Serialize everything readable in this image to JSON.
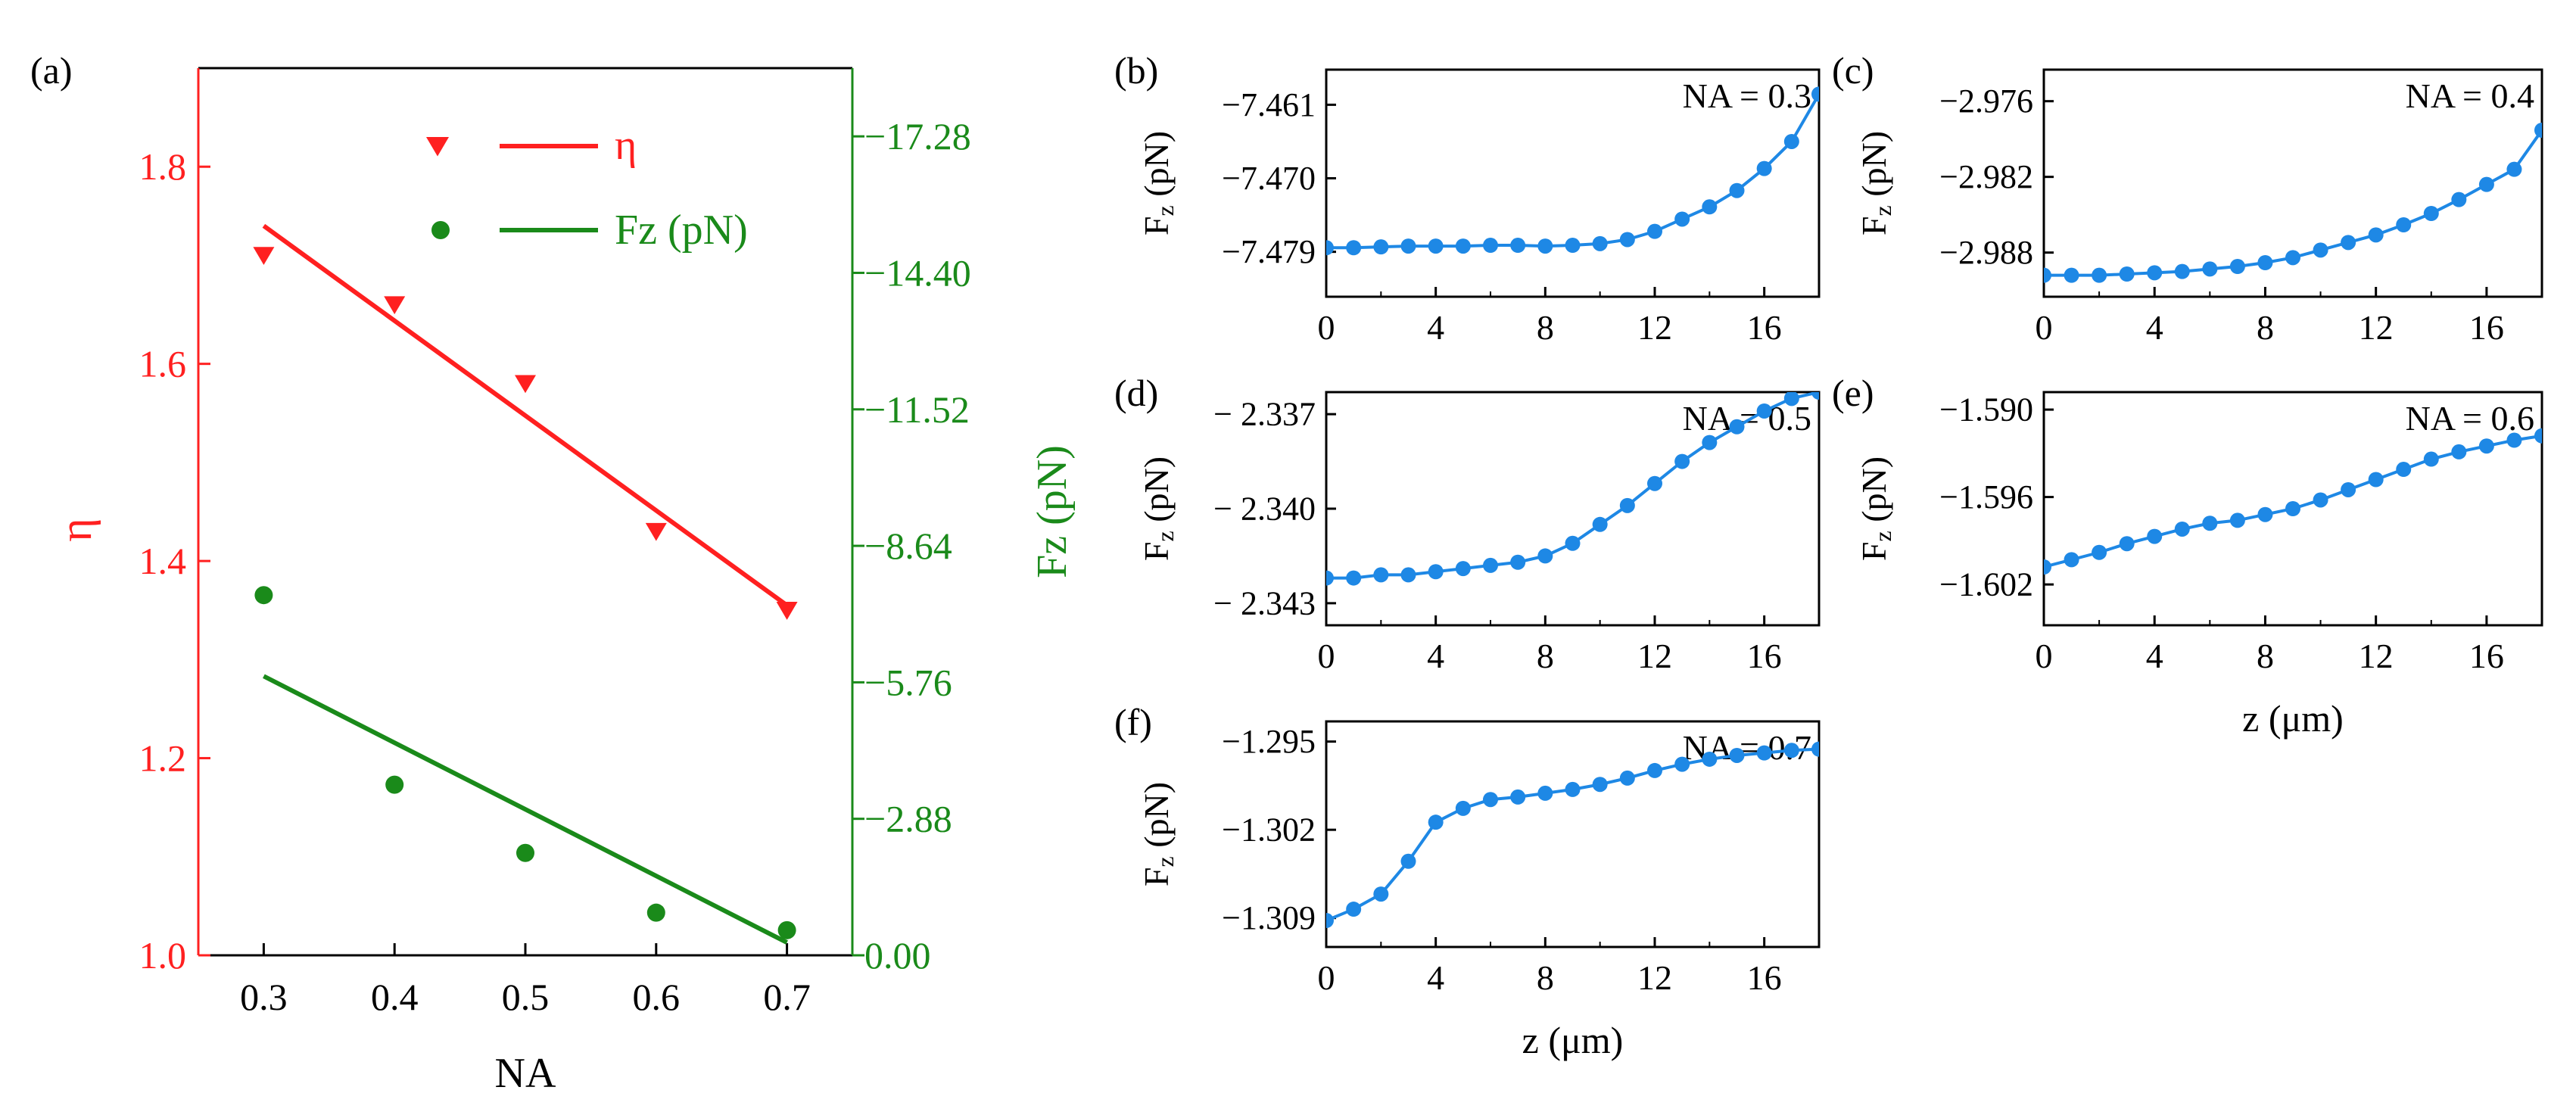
{
  "chart_data": [
    {
      "id": "a",
      "panel_label": "(a)",
      "type": "scatter",
      "xlabel": "NA",
      "x_ticks": [
        "0.3",
        "0.4",
        "0.5",
        "0.6",
        "0.7"
      ],
      "xlim": [
        0.25,
        0.75
      ],
      "y_left": {
        "label": "η",
        "ticks": [
          "1.0",
          "1.2",
          "1.4",
          "1.6",
          "1.8"
        ],
        "ylim": [
          1.0,
          1.9
        ],
        "color": "#ff2020"
      },
      "y_right": {
        "label": "Fz (pN)",
        "ticks": [
          "0.00",
          "−2.88",
          "−5.76",
          "−8.64",
          "−11.52",
          "−14.40",
          "−17.28"
        ],
        "ylim": [
          0,
          -18.72
        ],
        "color": "#1a8a1a"
      },
      "legend": [
        "η",
        "Fz (pN)"
      ],
      "series": [
        {
          "name": "η",
          "axis": "left",
          "marker": "triangle-down",
          "color": "#ff2020",
          "x": [
            0.3,
            0.4,
            0.5,
            0.6,
            0.7
          ],
          "y": [
            1.71,
            1.66,
            1.58,
            1.43,
            1.35
          ],
          "fit": {
            "x": [
              0.3,
              0.7
            ],
            "y": [
              1.74,
              1.355
            ]
          }
        },
        {
          "name": "Fz (pN)",
          "axis": "right",
          "marker": "circle",
          "color": "#1a8a1a",
          "x": [
            0.3,
            0.4,
            0.5,
            0.6,
            0.7
          ],
          "y": [
            -7.6,
            -3.6,
            -2.16,
            -0.9,
            -0.53
          ],
          "fit": {
            "x": [
              0.3,
              0.7
            ],
            "y": [
              -5.89,
              -0.27
            ]
          }
        }
      ]
    },
    {
      "id": "b",
      "panel_label": "(b)",
      "type": "line",
      "annotation": "NA = 0.3",
      "xlabel": "",
      "ylabel_main": "F",
      "ylabel_sub": "z",
      "ylabel_unit": " (pN)",
      "x_ticks": [
        "0",
        "4",
        "8",
        "12",
        "16"
      ],
      "xlim": [
        0,
        18
      ],
      "y_ticks": [
        "−7.479",
        "−7.470",
        "−7.461"
      ],
      "y_tick_values": [
        -7.479,
        -7.47,
        -7.461
      ],
      "ylim": [
        -7.4845,
        -7.4567
      ],
      "color": "#1e88e5",
      "x": [
        0,
        1,
        2,
        3,
        4,
        5,
        6,
        7,
        8,
        9,
        10,
        11,
        12,
        13,
        14,
        15,
        16,
        17,
        18
      ],
      "y": [
        -7.4785,
        -7.4785,
        -7.4784,
        -7.4783,
        -7.4783,
        -7.4783,
        -7.4782,
        -7.4782,
        -7.4783,
        -7.4782,
        -7.478,
        -7.4775,
        -7.4765,
        -7.475,
        -7.4735,
        -7.4715,
        -7.4688,
        -7.4655,
        -7.4597
      ]
    },
    {
      "id": "c",
      "panel_label": "(c)",
      "type": "line",
      "annotation": "NA = 0.4",
      "xlabel": "",
      "ylabel_main": "F",
      "ylabel_sub": "z",
      "ylabel_unit": " (pN)",
      "x_ticks": [
        "0",
        "4",
        "8",
        "12",
        "16"
      ],
      "xlim": [
        0,
        18
      ],
      "y_ticks": [
        "−2.988",
        "−2.982",
        "−2.976"
      ],
      "y_tick_values": [
        -2.988,
        -2.982,
        -2.976
      ],
      "ylim": [
        -2.9915,
        -2.9735
      ],
      "color": "#1e88e5",
      "x": [
        0,
        1,
        2,
        3,
        4,
        5,
        6,
        7,
        8,
        9,
        10,
        11,
        12,
        13,
        14,
        15,
        16,
        17,
        18
      ],
      "y": [
        -2.9898,
        -2.9898,
        -2.9898,
        -2.9897,
        -2.9896,
        -2.9895,
        -2.9893,
        -2.9891,
        -2.9888,
        -2.9884,
        -2.9878,
        -2.9872,
        -2.9866,
        -2.9858,
        -2.9849,
        -2.9838,
        -2.9826,
        -2.9814,
        -2.9783
      ]
    },
    {
      "id": "d",
      "panel_label": "(d)",
      "type": "line",
      "annotation": "NA = 0.5",
      "xlabel": "",
      "ylabel_main": "F",
      "ylabel_sub": "z",
      "ylabel_unit": " (pN)",
      "x_ticks": [
        "0",
        "4",
        "8",
        "12",
        "16"
      ],
      "xlim": [
        0,
        18
      ],
      "y_ticks": [
        "− 2.343",
        "− 2.340",
        "− 2.337"
      ],
      "y_tick_values": [
        -2.343,
        -2.34,
        -2.337
      ],
      "ylim": [
        -2.3437,
        -2.3363
      ],
      "color": "#1e88e5",
      "x": [
        0,
        1,
        2,
        3,
        4,
        5,
        6,
        7,
        8,
        9,
        10,
        11,
        12,
        13,
        14,
        15,
        16,
        17,
        18
      ],
      "y": [
        -2.3422,
        -2.3422,
        -2.3421,
        -2.3421,
        -2.342,
        -2.3419,
        -2.3418,
        -2.3417,
        -2.3415,
        -2.3411,
        -2.3405,
        -2.3399,
        -2.3392,
        -2.3385,
        -2.3379,
        -2.3374,
        -2.3369,
        -2.3365,
        -2.3363
      ]
    },
    {
      "id": "e",
      "panel_label": "(e)",
      "type": "line",
      "annotation": "NA = 0.6",
      "xlabel": "z (μm)",
      "ylabel_main": "F",
      "ylabel_sub": "z",
      "ylabel_unit": " (pN)",
      "x_ticks": [
        "0",
        "4",
        "8",
        "12",
        "16"
      ],
      "xlim": [
        0,
        18
      ],
      "y_ticks": [
        "−1.602",
        "−1.596",
        "−1.590"
      ],
      "y_tick_values": [
        -1.602,
        -1.596,
        -1.59
      ],
      "ylim": [
        -1.6048,
        -1.5888
      ],
      "color": "#1e88e5",
      "x": [
        0,
        1,
        2,
        3,
        4,
        5,
        6,
        7,
        8,
        9,
        10,
        11,
        12,
        13,
        14,
        15,
        16,
        17,
        18
      ],
      "y": [
        -1.6008,
        -1.6003,
        -1.5998,
        -1.5992,
        -1.5987,
        -1.5982,
        -1.5978,
        -1.5976,
        -1.5972,
        -1.5968,
        -1.5962,
        -1.5955,
        -1.5948,
        -1.5941,
        -1.5934,
        -1.5929,
        -1.5925,
        -1.5921,
        -1.5918
      ]
    },
    {
      "id": "f",
      "panel_label": "(f)",
      "type": "line",
      "annotation": "NA = 0.7",
      "xlabel": "z (μm)",
      "ylabel_main": "F",
      "ylabel_sub": "z",
      "ylabel_unit": " (pN)",
      "x_ticks": [
        "0",
        "4",
        "8",
        "12",
        "16"
      ],
      "xlim": [
        0,
        18
      ],
      "y_ticks": [
        "−1.309",
        "−1.302",
        "−1.295"
      ],
      "y_tick_values": [
        -1.309,
        -1.302,
        -1.295
      ],
      "ylim": [
        -1.3113,
        -1.2934
      ],
      "color": "#1e88e5",
      "x": [
        0,
        1,
        2,
        3,
        4,
        5,
        6,
        7,
        8,
        9,
        10,
        11,
        12,
        13,
        14,
        15,
        16,
        17,
        18
      ],
      "y": [
        -1.3092,
        -1.3083,
        -1.3071,
        -1.3045,
        -1.3014,
        -1.3003,
        -1.2996,
        -1.2994,
        -1.2991,
        -1.2988,
        -1.2984,
        -1.2979,
        -1.2973,
        -1.2968,
        -1.2964,
        -1.2961,
        -1.2959,
        -1.2957,
        -1.2956
      ]
    }
  ]
}
